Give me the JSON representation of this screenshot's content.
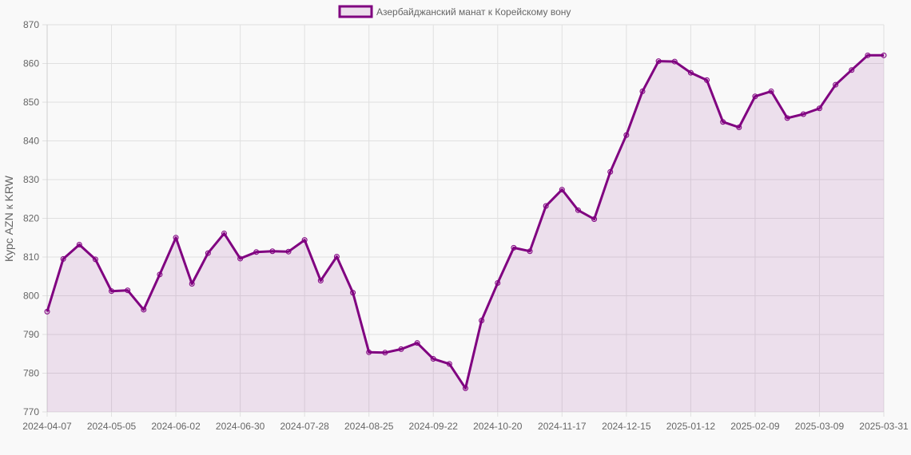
{
  "legend": {
    "label": "Азербайджанский манат к Корейскому вону"
  },
  "colors": {
    "line": "#800080",
    "fill": "rgba(128,0,128,0.1)",
    "grid": "#e0e0e0",
    "background": "#f9f9f9"
  },
  "chart_data": {
    "type": "line",
    "title": "",
    "xlabel": "",
    "ylabel": "Курс AZN к KRW",
    "ylim": [
      770,
      870
    ],
    "yticks": [
      770,
      780,
      790,
      800,
      810,
      820,
      830,
      840,
      850,
      860,
      870
    ],
    "xtick_labels": [
      "2024-04-07",
      "2024-05-05",
      "2024-06-02",
      "2024-06-30",
      "2024-07-28",
      "2024-08-25",
      "2024-09-22",
      "2024-10-20",
      "2024-11-17",
      "2024-12-15",
      "2025-01-12",
      "2025-02-09",
      "2025-03-09",
      "2025-03-31"
    ],
    "grid": true,
    "legend_position": "top",
    "categories": [
      "2024-04-07",
      "2024-04-14",
      "2024-04-21",
      "2024-04-28",
      "2024-05-05",
      "2024-05-12",
      "2024-05-19",
      "2024-05-26",
      "2024-06-02",
      "2024-06-09",
      "2024-06-16",
      "2024-06-23",
      "2024-06-30",
      "2024-07-07",
      "2024-07-14",
      "2024-07-21",
      "2024-07-28",
      "2024-08-04",
      "2024-08-11",
      "2024-08-18",
      "2024-08-25",
      "2024-09-01",
      "2024-09-08",
      "2024-09-15",
      "2024-09-22",
      "2024-09-29",
      "2024-10-06",
      "2024-10-13",
      "2024-10-20",
      "2024-10-27",
      "2024-11-03",
      "2024-11-10",
      "2024-11-17",
      "2024-11-24",
      "2024-12-01",
      "2024-12-08",
      "2024-12-15",
      "2024-12-22",
      "2024-12-29",
      "2025-01-05",
      "2025-01-12",
      "2025-01-19",
      "2025-01-26",
      "2025-02-02",
      "2025-02-09",
      "2025-02-16",
      "2025-02-23",
      "2025-03-02",
      "2025-03-09",
      "2025-03-16",
      "2025-03-23",
      "2025-03-30",
      "2025-03-31"
    ],
    "series": [
      {
        "name": "Азербайджанский манат к Корейскому вону",
        "values": [
          795.9,
          809.5,
          813.2,
          809.4,
          801.2,
          801.4,
          796.4,
          805.5,
          815.0,
          803.1,
          811.0,
          816.1,
          809.6,
          811.3,
          811.5,
          811.4,
          814.4,
          803.9,
          810.1,
          800.8,
          785.4,
          785.3,
          786.2,
          787.8,
          783.7,
          782.4,
          776.1,
          793.6,
          803.3,
          812.4,
          811.5,
          823.2,
          827.4,
          822.1,
          819.8,
          832.0,
          841.5,
          852.8,
          860.6,
          860.5,
          857.6,
          855.7,
          844.9,
          843.5,
          851.5,
          852.8,
          845.9,
          846.9,
          848.4,
          854.5,
          858.3,
          862.1,
          862.1
        ]
      }
    ]
  }
}
